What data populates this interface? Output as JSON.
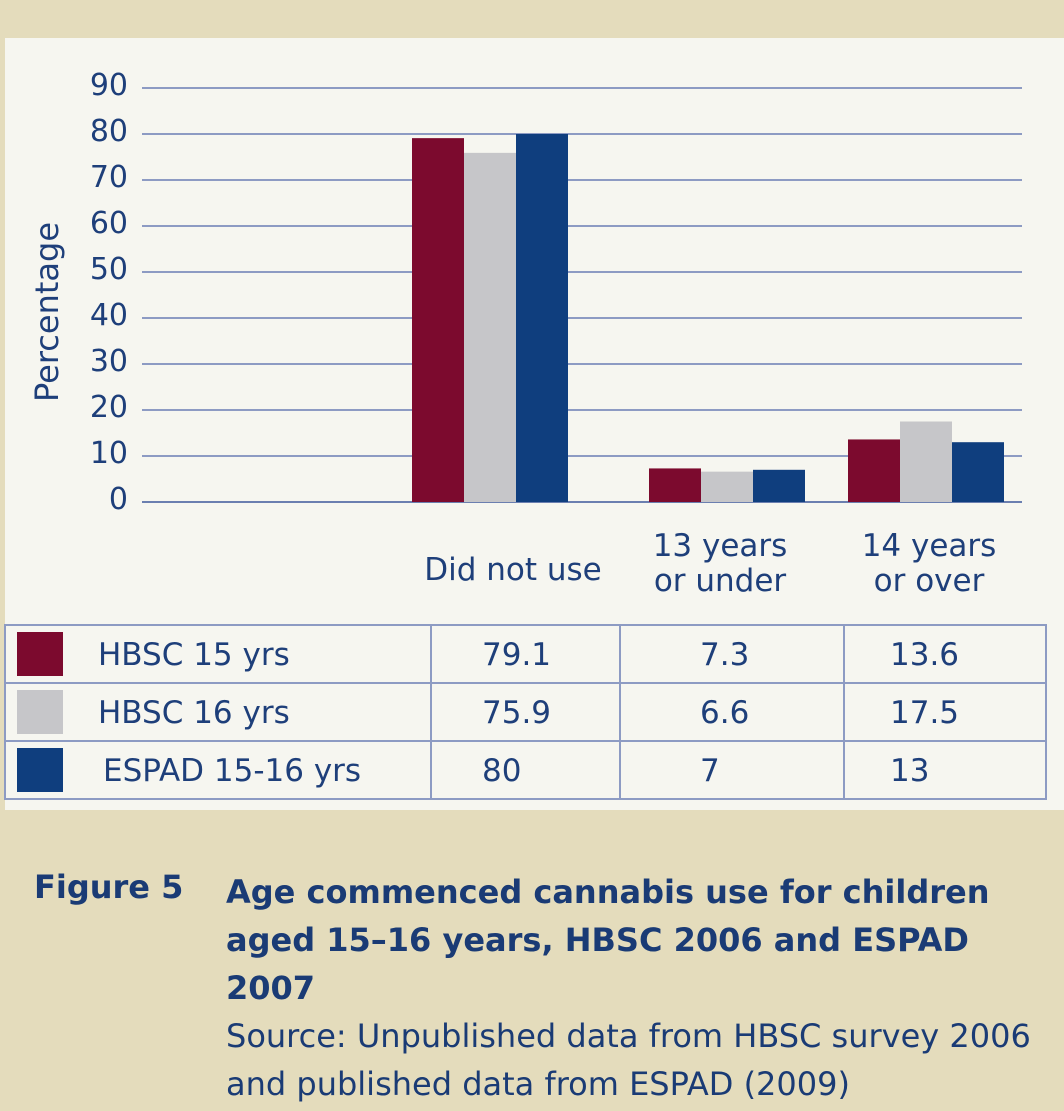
{
  "chart_data": {
    "type": "bar",
    "ylabel": "Percentage",
    "xlabel": "",
    "ylim": [
      0,
      90
    ],
    "yticks": [
      "0",
      "10",
      "20",
      "30",
      "40",
      "50",
      "60",
      "70",
      "80",
      "90"
    ],
    "categories": [
      {
        "lines": [
          "Did not use"
        ]
      },
      {
        "lines": [
          "13 years",
          "or under"
        ]
      },
      {
        "lines": [
          "14 years",
          "or over"
        ]
      }
    ],
    "series": [
      {
        "name": "HBSC 15 yrs",
        "color": "#7c0a2e",
        "values": [
          79.1,
          7.3,
          13.6
        ],
        "labels": [
          "79.1",
          "7.3",
          "13.6"
        ]
      },
      {
        "name": "HBSC 16 yrs",
        "color": "#c6c6c9",
        "values": [
          75.9,
          6.6,
          17.5
        ],
        "labels": [
          "75.9",
          "6.6",
          "17.5"
        ]
      },
      {
        "name": "ESPAD 15-16 yrs",
        "color": "#0f3e7e",
        "values": [
          80,
          7,
          13
        ],
        "labels": [
          "80",
          "7",
          "13"
        ]
      }
    ],
    "grid": true,
    "legend": "data table below chart"
  },
  "caption": {
    "figure_number": "Figure 5",
    "title": "Age commenced cannabis use for children aged 15–16 years, HBSC 2006 and ESPAD 2007",
    "source": "Source: Unpublished data from HBSC survey 2006 and published data from ESPAD (2009)"
  },
  "colors": {
    "background": "#e4dcbc",
    "panel": "#f6f6f0",
    "text": "#1e3f7a",
    "grid": "#8d9bc3"
  }
}
